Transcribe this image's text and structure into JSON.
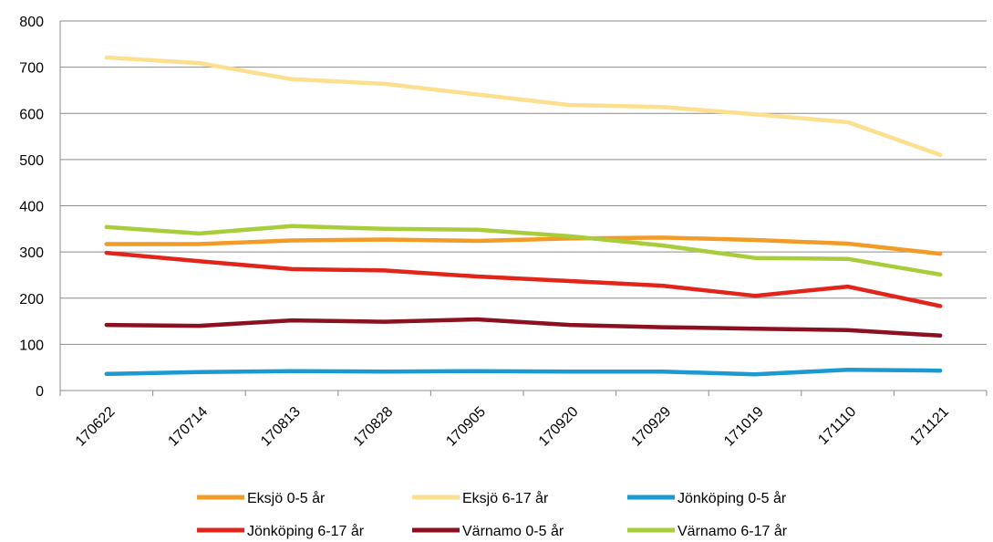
{
  "chart_data": {
    "type": "line",
    "categories": [
      "170622",
      "170714",
      "170813",
      "170828",
      "170905",
      "170920",
      "170929",
      "171019",
      "171110",
      "171121"
    ],
    "ylim": [
      0,
      800
    ],
    "yticks": [
      0,
      100,
      200,
      300,
      400,
      500,
      600,
      700,
      800
    ],
    "grid": true,
    "legend_position": "bottom",
    "series": [
      {
        "name": "Eksjö 0-5 år",
        "color": "#F29B26",
        "values": [
          317,
          317,
          325,
          327,
          324,
          329,
          331,
          326,
          318,
          296
        ]
      },
      {
        "name": "Eksjö 6-17 år",
        "color": "#FCDF8F",
        "values": [
          721,
          709,
          674,
          664,
          641,
          618,
          614,
          598,
          581,
          510
        ]
      },
      {
        "name": "Jönköping 0-5 år",
        "color": "#1A9AD1",
        "values": [
          36,
          40,
          42,
          41,
          42,
          41,
          41,
          35,
          45,
          43
        ]
      },
      {
        "name": "Jönköping 6-17 år",
        "color": "#E1251B",
        "values": [
          298,
          280,
          263,
          260,
          247,
          237,
          227,
          205,
          225,
          183
        ]
      },
      {
        "name": "Värnamo 0-5 år",
        "color": "#8B1020",
        "values": [
          142,
          140,
          152,
          149,
          154,
          142,
          137,
          134,
          131,
          119
        ]
      },
      {
        "name": "Värnamo 6-17 år",
        "color": "#A8CC3A",
        "values": [
          354,
          340,
          356,
          350,
          348,
          334,
          314,
          287,
          285,
          251
        ]
      }
    ]
  }
}
